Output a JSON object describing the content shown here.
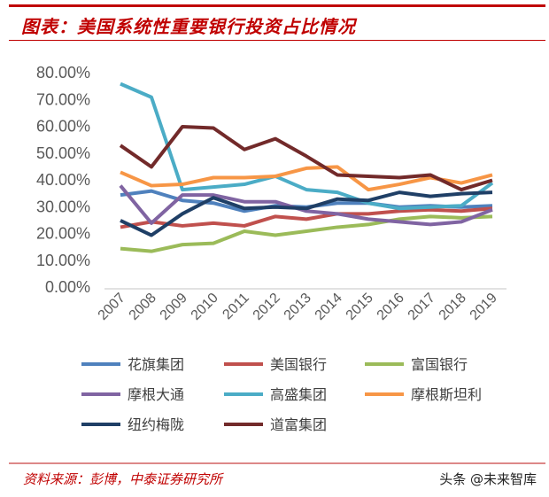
{
  "title": "图表：美国系统性重要银行投资占比情况",
  "source": "资料来源：彭博，中泰证券研究所",
  "watermark": "头条 @未来智库",
  "chart_data": {
    "type": "line",
    "title": "",
    "xlabel": "",
    "ylabel": "",
    "ylim": [
      0,
      80
    ],
    "yticks": [
      "0.00%",
      "10.00%",
      "20.00%",
      "30.00%",
      "40.00%",
      "50.00%",
      "60.00%",
      "70.00%",
      "80.00%"
    ],
    "categories": [
      "2007",
      "2008",
      "2009",
      "2010",
      "2011",
      "2012",
      "2013",
      "2014",
      "2015",
      "2016",
      "2017",
      "2018",
      "2019"
    ],
    "legend_placement": "bottom",
    "grid": false,
    "series": [
      {
        "name": "花旗集团",
        "color": "#4f81bd",
        "values": [
          34,
          35.5,
          32,
          31,
          28,
          30,
          29.5,
          31,
          31,
          29.5,
          30,
          29.5,
          30
        ]
      },
      {
        "name": "美国银行",
        "color": "#c0504d",
        "values": [
          22,
          24,
          22.5,
          23.5,
          22.5,
          26,
          25,
          27,
          27,
          28,
          28.5,
          28,
          29
        ]
      },
      {
        "name": "富国银行",
        "color": "#9bbb59",
        "values": [
          14,
          13,
          15.5,
          16,
          20.5,
          19,
          20.5,
          22,
          23,
          25,
          26,
          25.5,
          26
        ]
      },
      {
        "name": "摩根大通",
        "color": "#8064a2",
        "values": [
          37.5,
          23.5,
          34,
          34,
          31.5,
          31.5,
          28,
          27,
          25,
          24,
          23,
          24,
          28.5
        ]
      },
      {
        "name": "高盛集团",
        "color": "#4bacc6",
        "values": [
          75.5,
          70.5,
          36,
          37,
          38,
          41,
          36,
          35,
          31,
          29,
          29.5,
          30,
          38.5
        ]
      },
      {
        "name": "摩根斯坦利",
        "color": "#f79646",
        "values": [
          42.5,
          37.5,
          38,
          40.5,
          40.5,
          41,
          44,
          44.5,
          36,
          38,
          40.5,
          38.5,
          41.5
        ]
      },
      {
        "name": "纽约梅陇",
        "color": "#1f3f66",
        "values": [
          24.5,
          19,
          27,
          33,
          29,
          29.5,
          29,
          32.5,
          32,
          35,
          33.5,
          34.5,
          35
        ]
      },
      {
        "name": "道富集团",
        "color": "#722a2a",
        "values": [
          52.5,
          44.5,
          59.5,
          59,
          51,
          55,
          48.5,
          41.5,
          41,
          40.5,
          41.5,
          36,
          39.5
        ]
      }
    ]
  }
}
